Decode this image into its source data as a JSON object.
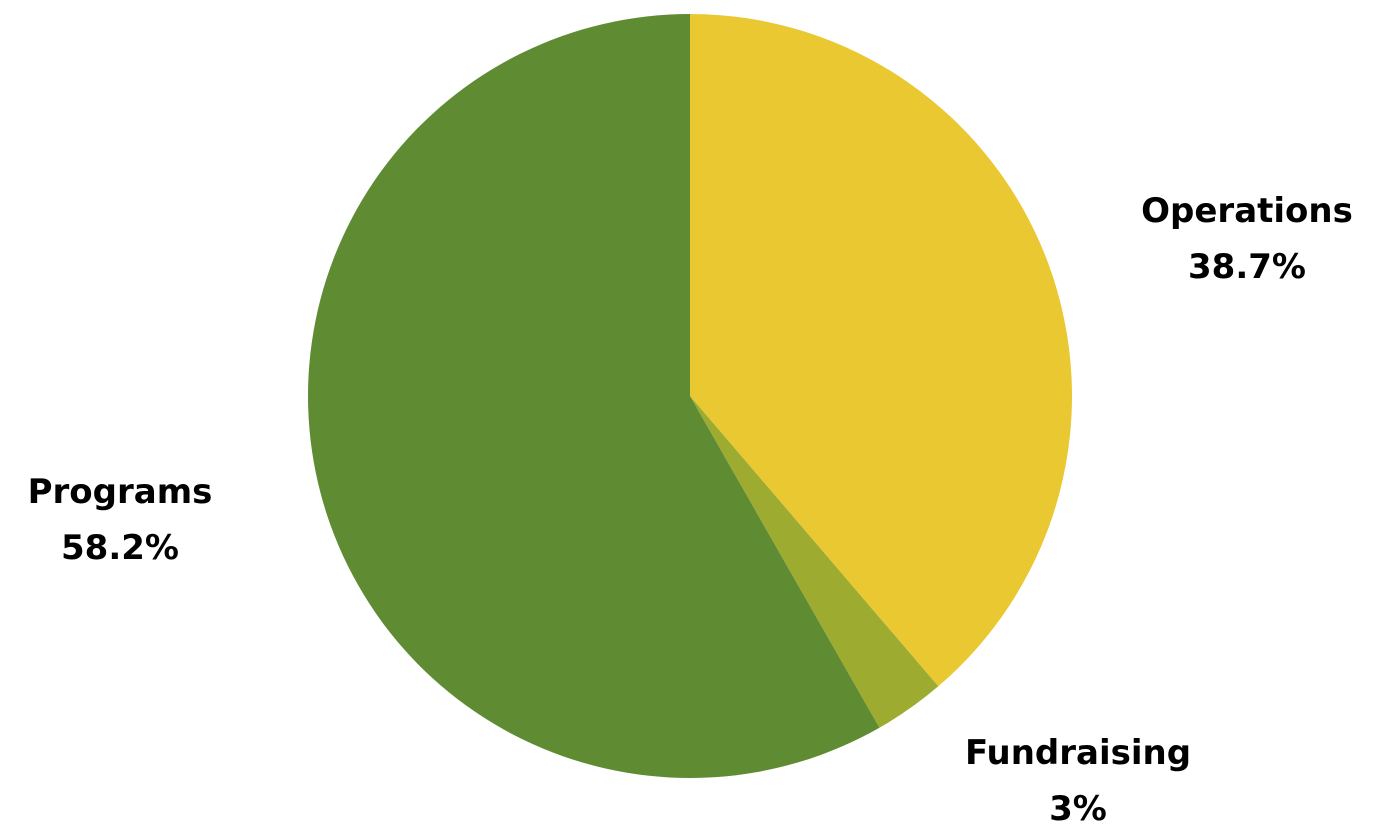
{
  "chart_data": {
    "type": "pie",
    "title": "",
    "start_angle_deg": 0,
    "direction": "clockwise",
    "slices": [
      {
        "label": "Operations",
        "value": 38.7,
        "display": "38.7%",
        "color": "#E9C832"
      },
      {
        "label": "Fundraising",
        "value": 3,
        "display": "3%",
        "color": "#9DAC31"
      },
      {
        "label": "Programs",
        "value": 58.2,
        "display": "58.2%",
        "color": "#5F8C33"
      }
    ],
    "legend": "none",
    "labels": "outside, category name and percentage"
  }
}
